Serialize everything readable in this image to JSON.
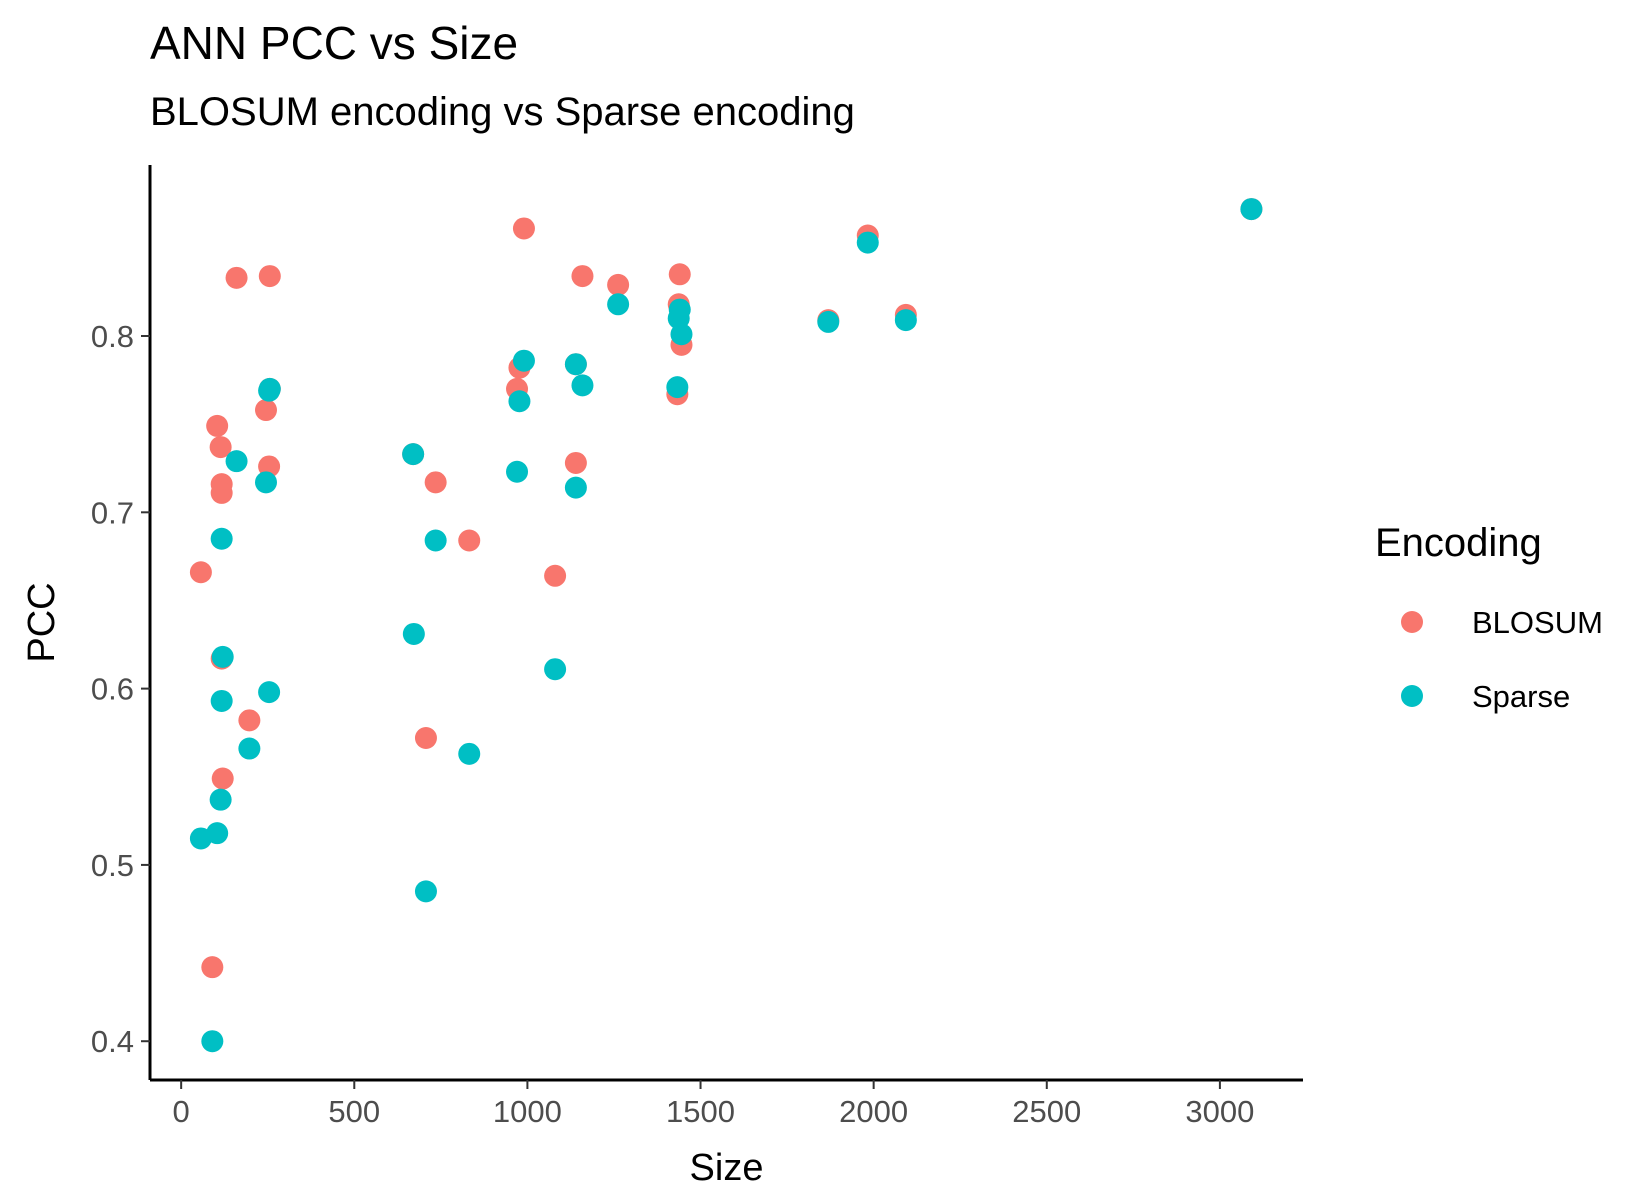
{
  "chart_data": {
    "type": "scatter",
    "title": "ANN PCC vs Size",
    "subtitle": "BLOSUM encoding vs Sparse encoding",
    "xlabel": "Size",
    "ylabel": "PCC",
    "xlim": [
      -90,
      3240
    ],
    "ylim": [
      0.378,
      0.897
    ],
    "xticks": [
      0,
      500,
      1000,
      1500,
      2000,
      2500,
      3000
    ],
    "yticks": [
      0.4,
      0.5,
      0.6,
      0.7,
      0.8
    ],
    "xtick_labels": [
      "0",
      "500",
      "1000",
      "1500",
      "2000",
      "2500",
      "3000"
    ],
    "ytick_labels": [
      "0.4",
      "0.5",
      "0.6",
      "0.7",
      "0.8"
    ],
    "grid": false,
    "legend": {
      "title": "Encoding",
      "position": "right"
    },
    "series": [
      {
        "name": "BLOSUM",
        "color": "#F8766D",
        "points": [
          [
            57,
            0.666
          ],
          [
            90,
            0.442
          ],
          [
            104,
            0.749
          ],
          [
            114,
            0.737
          ],
          [
            117,
            0.716
          ],
          [
            117,
            0.711
          ],
          [
            117,
            0.617
          ],
          [
            120,
            0.549
          ],
          [
            160,
            0.833
          ],
          [
            197,
            0.582
          ],
          [
            245,
            0.758
          ],
          [
            254,
            0.726
          ],
          [
            256,
            0.834
          ],
          [
            256,
            0.77
          ],
          [
            670,
            0.733
          ],
          [
            707,
            0.572
          ],
          [
            735,
            0.717
          ],
          [
            832,
            0.684
          ],
          [
            970,
            0.77
          ],
          [
            977,
            0.782
          ],
          [
            990,
            0.861
          ],
          [
            1080,
            0.664
          ],
          [
            1140,
            0.784
          ],
          [
            1140,
            0.728
          ],
          [
            1159,
            0.834
          ],
          [
            1262,
            0.829
          ],
          [
            1433,
            0.767
          ],
          [
            1437,
            0.818
          ],
          [
            1440,
            0.835
          ],
          [
            1445,
            0.795
          ],
          [
            1869,
            0.809
          ],
          [
            1983,
            0.857
          ],
          [
            2093,
            0.812
          ],
          [
            3091,
            0.872
          ]
        ]
      },
      {
        "name": "Sparse",
        "color": "#00BFC4",
        "points": [
          [
            57,
            0.515
          ],
          [
            90,
            0.4
          ],
          [
            104,
            0.518
          ],
          [
            114,
            0.537
          ],
          [
            117,
            0.593
          ],
          [
            117,
            0.685
          ],
          [
            120,
            0.618
          ],
          [
            160,
            0.729
          ],
          [
            197,
            0.566
          ],
          [
            245,
            0.717
          ],
          [
            254,
            0.598
          ],
          [
            254,
            0.769
          ],
          [
            256,
            0.77
          ],
          [
            670,
            0.733
          ],
          [
            672,
            0.631
          ],
          [
            707,
            0.485
          ],
          [
            735,
            0.684
          ],
          [
            832,
            0.563
          ],
          [
            970,
            0.723
          ],
          [
            977,
            0.763
          ],
          [
            990,
            0.786
          ],
          [
            1080,
            0.611
          ],
          [
            1140,
            0.784
          ],
          [
            1140,
            0.714
          ],
          [
            1159,
            0.772
          ],
          [
            1262,
            0.818
          ],
          [
            1433,
            0.771
          ],
          [
            1437,
            0.81
          ],
          [
            1440,
            0.815
          ],
          [
            1445,
            0.801
          ],
          [
            1869,
            0.808
          ],
          [
            1983,
            0.853
          ],
          [
            2093,
            0.809
          ],
          [
            3091,
            0.872
          ]
        ]
      }
    ]
  }
}
